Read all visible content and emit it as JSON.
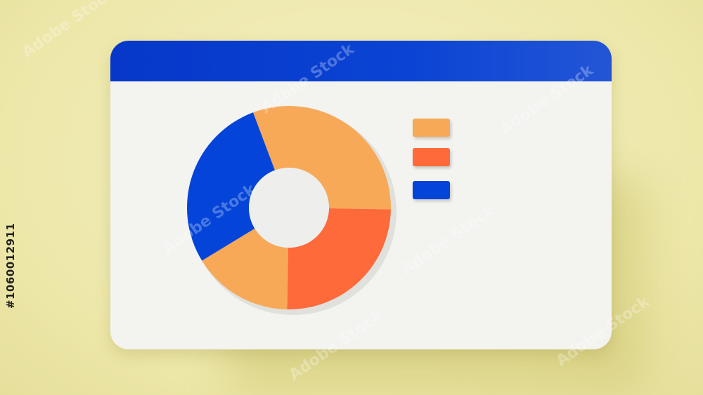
{
  "watermark": "Adobe Stock",
  "stock_id": "#1060012911",
  "colors": {
    "background": "#efeab0",
    "titlebar": "#0a3fd0",
    "window": "#f3f3f0"
  },
  "chart_data": {
    "type": "pie",
    "donut": true,
    "title": "",
    "values": [
      31,
      25,
      16,
      28
    ],
    "colors": [
      "#f7a957",
      "#ff6a3a",
      "#f7a957",
      "#0444d8"
    ],
    "start_angle_deg": -20.6,
    "legend": {
      "placement": "right",
      "swatches": [
        "#f7a957",
        "#ff6a3a",
        "#0444d8"
      ]
    }
  }
}
